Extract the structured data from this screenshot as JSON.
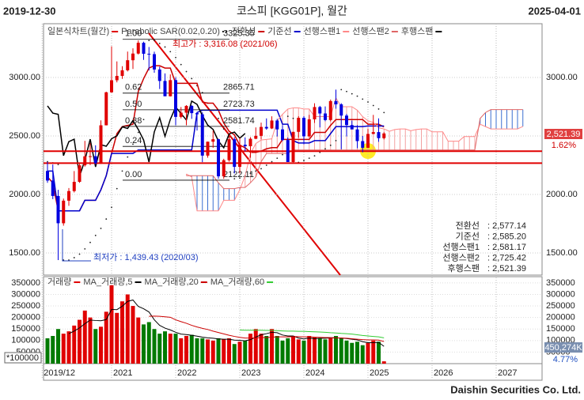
{
  "header": {
    "start_date": "2019-12-30",
    "title": "코스피 [KGG01P], 월간",
    "end_date": "2025-04-01"
  },
  "footer": "Daishin Securities Co. Ltd.",
  "chart_data": [
    {
      "type": "candlestick",
      "name": "일본식차트(월간)",
      "up_color": "#e00000",
      "down_color": "#0000e0",
      "xticks": [
        "2019/12",
        "2021",
        "2022",
        "2023",
        "2024",
        "2025",
        "2026",
        "2027"
      ],
      "open": [
        2201,
        2119,
        1987,
        1754,
        1947,
        2029,
        2108,
        2249,
        2326,
        2327,
        2267,
        2591,
        2873,
        2976,
        3013,
        3061,
        3147,
        3204,
        3296,
        3202,
        3199,
        3068,
        2970,
        2839,
        2977,
        2663,
        2699,
        2757,
        2695,
        2685,
        2332,
        2451,
        2472,
        2155,
        2293,
        2472,
        2236,
        2425,
        2412,
        2476,
        2501,
        2577,
        2564,
        2632,
        2556,
        2465,
        2277,
        2535,
        2655,
        2497,
        2642,
        2747,
        2692,
        2636,
        2798,
        2770,
        2674,
        2593,
        2556,
        2456,
        2399,
        2517,
        2533,
        2481
      ],
      "high": [
        2277,
        2256,
        2040,
        1965,
        2055,
        2200,
        2262,
        2458,
        2440,
        2420,
        2633,
        2878,
        3266,
        3137,
        3096,
        3221,
        3249,
        3316,
        3305,
        3260,
        3220,
        3092,
        3034,
        3026,
        3001,
        2747,
        2763,
        2763,
        2700,
        2703,
        2452,
        2546,
        2476,
        2305,
        2501,
        2489,
        2484,
        2488,
        2490,
        2573,
        2614,
        2650,
        2668,
        2646,
        2592,
        2487,
        2535,
        2669,
        2669,
        2680,
        2779,
        2757,
        2752,
        2811,
        2896,
        2780,
        2689,
        2631,
        2592,
        2500,
        2560,
        2680,
        2650,
        2532
      ],
      "low": [
        2100,
        1960,
        1439,
        1733,
        1903,
        2017,
        2100,
        2238,
        2251,
        2255,
        2260,
        2590,
        2869,
        2958,
        2988,
        3051,
        3072,
        3196,
        3150,
        3060,
        3040,
        2901,
        2839,
        2837,
        2591,
        2650,
        2591,
        2646,
        2546,
        2276,
        2314,
        2399,
        2134,
        2134,
        2280,
        2180,
        2180,
        2370,
        2314,
        2472,
        2470,
        2553,
        2559,
        2495,
        2457,
        2277,
        2274,
        2484,
        2429,
        2488,
        2611,
        2573,
        2626,
        2625,
        2733,
        2386,
        2496,
        2556,
        2395,
        2360,
        2397,
        2515,
        2450,
        2470
      ],
      "close": [
        2119,
        1987,
        1754,
        1947,
        2029,
        2108,
        2249,
        2326,
        2327,
        2267,
        2591,
        2873,
        2976,
        3013,
        3061,
        3147,
        3204,
        3296,
        3202,
        3199,
        3068,
        2970,
        2839,
        2977,
        2663,
        2699,
        2757,
        2695,
        2685,
        2332,
        2451,
        2472,
        2155,
        2293,
        2472,
        2236,
        2425,
        2412,
        2476,
        2501,
        2577,
        2564,
        2632,
        2556,
        2465,
        2277,
        2535,
        2655,
        2497,
        2642,
        2747,
        2692,
        2636,
        2798,
        2770,
        2674,
        2593,
        2556,
        2456,
        2399,
        2517,
        2533,
        2481,
        2521.39
      ],
      "ylim": [
        1311,
        3459
      ],
      "yticks": [
        {
          "value": 1500,
          "label": "1500.00"
        },
        {
          "value": 2000,
          "label": "2000.00"
        },
        {
          "value": 2500,
          "label": "2500.00"
        },
        {
          "value": 3000,
          "label": "3000.00"
        }
      ],
      "grid": true,
      "series": [
        {
          "name": "Parabolic SAR(0.02,0.20)",
          "color": "#222222",
          "style": "dots",
          "values": [
            2280,
            2270,
            2256,
            1439,
            1439,
            1460,
            1490,
            1535,
            1590,
            1650,
            1710,
            1790,
            1890,
            2050,
            2200,
            2320,
            2430,
            2530,
            2640,
            3316,
            3316,
            3290,
            3260,
            3220,
            3170,
            3110,
            3050,
            2990,
            2930,
            2870,
            2780,
            2720,
            2650,
            2560,
            2490,
            2134,
            2140,
            2160,
            2180,
            2200,
            2220,
            2250,
            2280,
            2310,
            2340,
            2668,
            2650,
            2274,
            2290,
            2310,
            2330,
            2360,
            2390,
            2420,
            2460,
            2896,
            2880,
            2860,
            2840,
            2815,
            2790,
            2760,
            2730,
            2700
          ]
        },
        {
          "name": "전환선",
          "color": "#cc0000",
          "style": "line",
          "values": [
            2150,
            2100,
            1860,
            1860,
            1860,
            1860,
            1860,
            1950,
            1950,
            1950,
            2040,
            2160,
            2350,
            2520,
            2580,
            2590,
            2600,
            2880,
            2990,
            3080,
            3100,
            3100,
            3080,
            3080,
            2950,
            2950,
            2950,
            2950,
            2950,
            2790,
            2780,
            2780,
            2720,
            2610,
            2540,
            2510,
            2420,
            2400,
            2360,
            2360,
            2370,
            2390,
            2400,
            2400,
            2470,
            2470,
            2470,
            2470,
            2470,
            2470,
            2530,
            2530,
            2530,
            2590,
            2640,
            2640,
            2640,
            2640,
            2640,
            2640,
            2600,
            2600,
            2600,
            2577.14
          ]
        },
        {
          "name": "기준선",
          "color": "#0000cc",
          "style": "line",
          "values": [
            2200,
            2200,
            1860,
            1860,
            1860,
            1860,
            1860,
            1950,
            1950,
            1950,
            2040,
            2160,
            2350,
            2350,
            2350,
            2350,
            2350,
            2380,
            2380,
            2380,
            2380,
            2380,
            2380,
            2380,
            2380,
            2380,
            2380,
            2380,
            2700,
            2720,
            2720,
            2720,
            2720,
            2720,
            2720,
            2720,
            2720,
            2720,
            2720,
            2720,
            2720,
            2720,
            2720,
            2720,
            2600,
            2600,
            2460,
            2440,
            2440,
            2440,
            2460,
            2460,
            2460,
            2520,
            2580,
            2580,
            2580,
            2580,
            2580,
            2580,
            2585.2,
            2585.2,
            2585.2,
            2585.2
          ]
        },
        {
          "name": "선행스팬1",
          "color": "#ff8888",
          "style": "span",
          "values": [
            null,
            null,
            null,
            null,
            null,
            null,
            null,
            null,
            null,
            null,
            null,
            null,
            null,
            null,
            null,
            null,
            null,
            null,
            null,
            null,
            null,
            null,
            null,
            null,
            null,
            null,
            2175,
            2150,
            1860,
            1860,
            1860,
            1860,
            1860,
            1950,
            1950,
            1950,
            2040,
            2160,
            2350,
            2435,
            2465,
            2470,
            2475,
            2630,
            2685,
            2730,
            2740,
            2740,
            2730,
            2730,
            2665,
            2665,
            2665,
            2665,
            2825,
            2750,
            2750,
            2750,
            2720,
            2665,
            2630,
            2615,
            2570,
            2560,
            2540,
            2555,
            2560,
            2560,
            2545,
            2555,
            2560,
            2560,
            2535,
            2535,
            2535,
            2455,
            2455,
            2455,
            2495,
            2495,
            2495,
            2600,
            2580,
            2560,
            2560,
            2560,
            2560,
            2560,
            2560,
            2581.17
          ]
        },
        {
          "name": "선행스팬2",
          "color": "#e06666",
          "style": "span",
          "values": [
            null,
            null,
            null,
            null,
            null,
            null,
            null,
            null,
            null,
            null,
            null,
            null,
            null,
            null,
            null,
            null,
            null,
            null,
            null,
            null,
            null,
            null,
            null,
            null,
            null,
            null,
            2160,
            2160,
            2160,
            2160,
            2160,
            2160,
            2100,
            2050,
            2050,
            2050,
            2060,
            2060,
            2100,
            2150,
            2280,
            2350,
            2350,
            2350,
            2350,
            2350,
            2380,
            2380,
            2380,
            2380,
            2380,
            2380,
            2380,
            2380,
            2380,
            2380,
            2380,
            2380,
            2380,
            2380,
            2380,
            2380,
            2380,
            2380,
            2380,
            2380,
            2380,
            2380,
            2380,
            2380,
            2380,
            2380,
            2380,
            2380,
            2380,
            2380,
            2380,
            2380,
            2380,
            2380,
            2380,
            2650,
            2700,
            2725,
            2725,
            2725,
            2725,
            2725,
            2725,
            2725.42
          ]
        },
        {
          "name": "후행스팬",
          "color": "#000000",
          "style": "line",
          "values": [
            2757,
            2695,
            2685,
            2332,
            2451,
            2472,
            2155,
            2293,
            2472,
            2236,
            2425,
            2412,
            2476,
            2501,
            2577,
            2564,
            2632,
            2556,
            2465,
            2277,
            2535,
            2655,
            2497,
            2642,
            2747,
            2692,
            2636,
            2798,
            2770,
            2674,
            2593,
            2556,
            2456,
            2399,
            2517,
            2533,
            2481,
            2521.39,
            null,
            null,
            null,
            null,
            null,
            null,
            null,
            null,
            null,
            null,
            null,
            null,
            null,
            null,
            null,
            null,
            null,
            null,
            null,
            null,
            null,
            null,
            null,
            null,
            null,
            null
          ]
        }
      ],
      "fib": [
        {
          "ratio": "1.00",
          "value": 3325.35
        },
        {
          "ratio": "0.62",
          "value": 2865.71
        },
        {
          "ratio": "0.50",
          "value": 2723.73
        },
        {
          "ratio": "0.38",
          "value": 2581.74
        },
        {
          "ratio": "0.24",
          "value": 2410.89,
          "label_hidden": true
        },
        {
          "ratio": "0.00",
          "value": 2122.11
        }
      ],
      "hlines": [
        2370,
        2268
      ],
      "high_note": "최고가 : 3,316.08 (2021/06)",
      "low_note": "최저가 : 1,439.43 (2020/03)",
      "last_price": "2,521.39",
      "change": "1.62%",
      "info": [
        [
          "전환선",
          ": 2,577.14"
        ],
        [
          "기준선",
          ": 2,585.20"
        ],
        [
          "선행스팬1",
          ": 2,581.17"
        ],
        [
          "선행스팬2",
          ": 2,725.42"
        ],
        [
          "후행스팬",
          ": 2,521.39"
        ]
      ]
    },
    {
      "type": "bar",
      "name": "거래량",
      "up_color": "#e00000",
      "down_color": "#007a00",
      "values": [
        110000,
        120000,
        150000,
        130000,
        140000,
        165000,
        190000,
        230000,
        200000,
        150000,
        160000,
        225000,
        340000,
        220000,
        270000,
        300000,
        250000,
        200000,
        170000,
        180000,
        150000,
        130000,
        140000,
        130000,
        130000,
        110000,
        120000,
        125000,
        110000,
        110000,
        105000,
        100000,
        110000,
        105000,
        110000,
        85000,
        95000,
        100000,
        130000,
        150000,
        130000,
        120000,
        150000,
        120000,
        100000,
        110000,
        120000,
        105000,
        100000,
        120000,
        115000,
        110000,
        105000,
        110000,
        120000,
        110000,
        100000,
        90000,
        95000,
        80000,
        90000,
        100000,
        95000,
        10000
      ],
      "ylim": [
        0,
        377000
      ],
      "yticks": [
        50000,
        100000,
        150000,
        200000,
        250000,
        300000,
        350000
      ],
      "grid": true,
      "series": [
        {
          "name": "MA_거래량,5",
          "color": "#000000",
          "values": [
            null,
            null,
            null,
            null,
            130000,
            141000,
            155000,
            173000,
            189000,
            187000,
            186000,
            191000,
            235000,
            234000,
            249000,
            270000,
            276000,
            248000,
            238000,
            224000,
            190000,
            166000,
            154000,
            146000,
            136000,
            128000,
            126000,
            123000,
            119000,
            115000,
            112000,
            110000,
            107000,
            106000,
            106000,
            102000,
            101000,
            99000,
            104000,
            115000,
            125000,
            130000,
            136000,
            134000,
            124000,
            120000,
            120000,
            111000,
            107000,
            111000,
            108000,
            110000,
            110000,
            112000,
            112000,
            111000,
            109000,
            106000,
            103000,
            95000,
            91000,
            91000,
            92000,
            75000
          ]
        },
        {
          "name": "MA_거래량,20",
          "color": "#cc0000",
          "values": [
            null,
            null,
            null,
            null,
            null,
            null,
            null,
            null,
            null,
            null,
            null,
            null,
            null,
            null,
            null,
            null,
            null,
            null,
            null,
            205000,
            206000,
            205000,
            203000,
            201000,
            190000,
            182000,
            175000,
            166000,
            159000,
            153000,
            148000,
            141000,
            135000,
            129000,
            123000,
            118000,
            114000,
            111000,
            111000,
            112000,
            113000,
            113000,
            115000,
            116000,
            116000,
            116000,
            117000,
            117000,
            116000,
            116000,
            115000,
            114000,
            113000,
            113000,
            112000,
            111000,
            110000,
            108000,
            106000,
            104000,
            103000,
            103000,
            102000,
            96000
          ]
        },
        {
          "name": "MA_거래량,60",
          "color": "#33cc33",
          "values": [
            null,
            null,
            null,
            null,
            null,
            null,
            null,
            null,
            null,
            null,
            null,
            null,
            null,
            null,
            null,
            null,
            null,
            null,
            null,
            null,
            null,
            null,
            null,
            null,
            null,
            null,
            null,
            null,
            null,
            null,
            null,
            null,
            null,
            null,
            null,
            null,
            146000,
            145000,
            145000,
            145000,
            145000,
            144000,
            144000,
            143000,
            142000,
            141000,
            141000,
            140000,
            140000,
            139000,
            138000,
            137000,
            136000,
            134000,
            133000,
            131000,
            130000,
            128000,
            125000,
            122000,
            120000,
            118000,
            116000,
            112000
          ]
        }
      ],
      "last_volume": "450,274K",
      "change": "4.77%",
      "unit": "*100000"
    }
  ]
}
